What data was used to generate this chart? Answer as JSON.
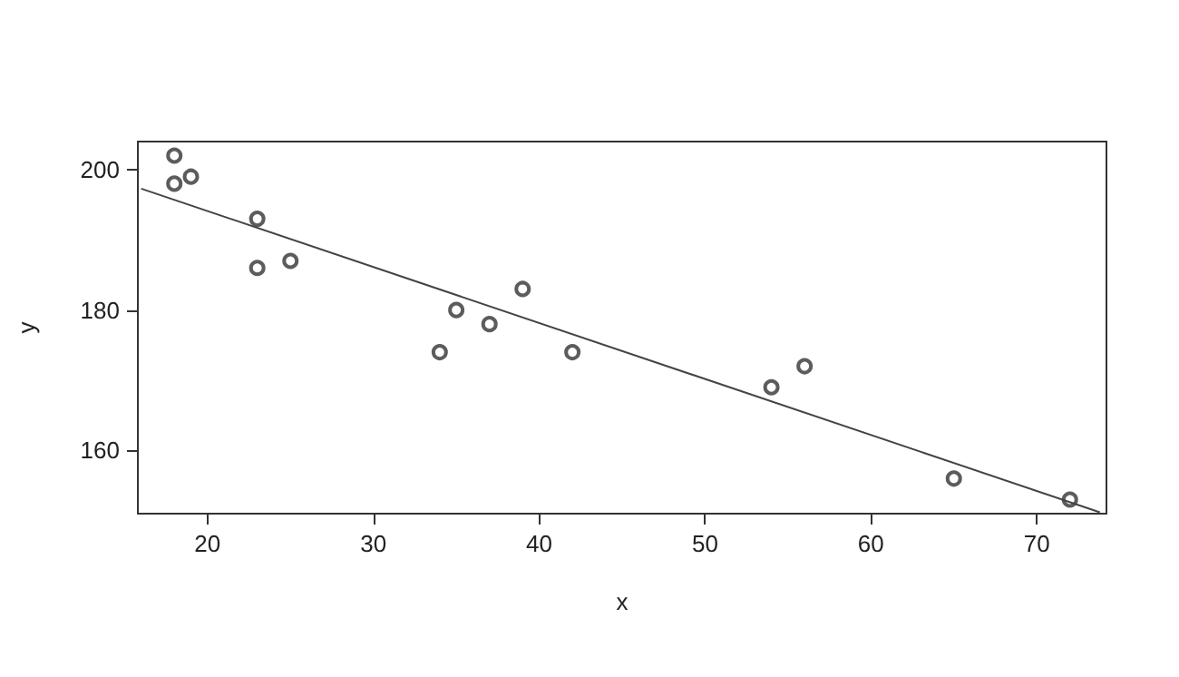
{
  "chart_data": {
    "type": "scatter",
    "xlabel": "x",
    "ylabel": "y",
    "xlim": [
      15.8,
      74.2
    ],
    "ylim": [
      151,
      204
    ],
    "xticks": [
      20,
      30,
      40,
      50,
      60,
      70
    ],
    "yticks": [
      160,
      180,
      200
    ],
    "grid": false,
    "marker": "circle",
    "series": [
      {
        "color": "#333333",
        "x": [
          18,
          23,
          25,
          35,
          65,
          54,
          34,
          56,
          72,
          19,
          23,
          42,
          18,
          39,
          37
        ],
        "values": [
          202,
          186,
          187,
          180,
          156,
          169,
          174,
          172,
          153,
          199,
          193,
          174,
          198,
          183,
          178
        ]
      },
      {
        "type": "line",
        "color": "#444444",
        "x": [
          16,
          73.8
        ],
        "values": [
          197.3,
          151.2
        ],
        "marker": "none"
      }
    ]
  }
}
